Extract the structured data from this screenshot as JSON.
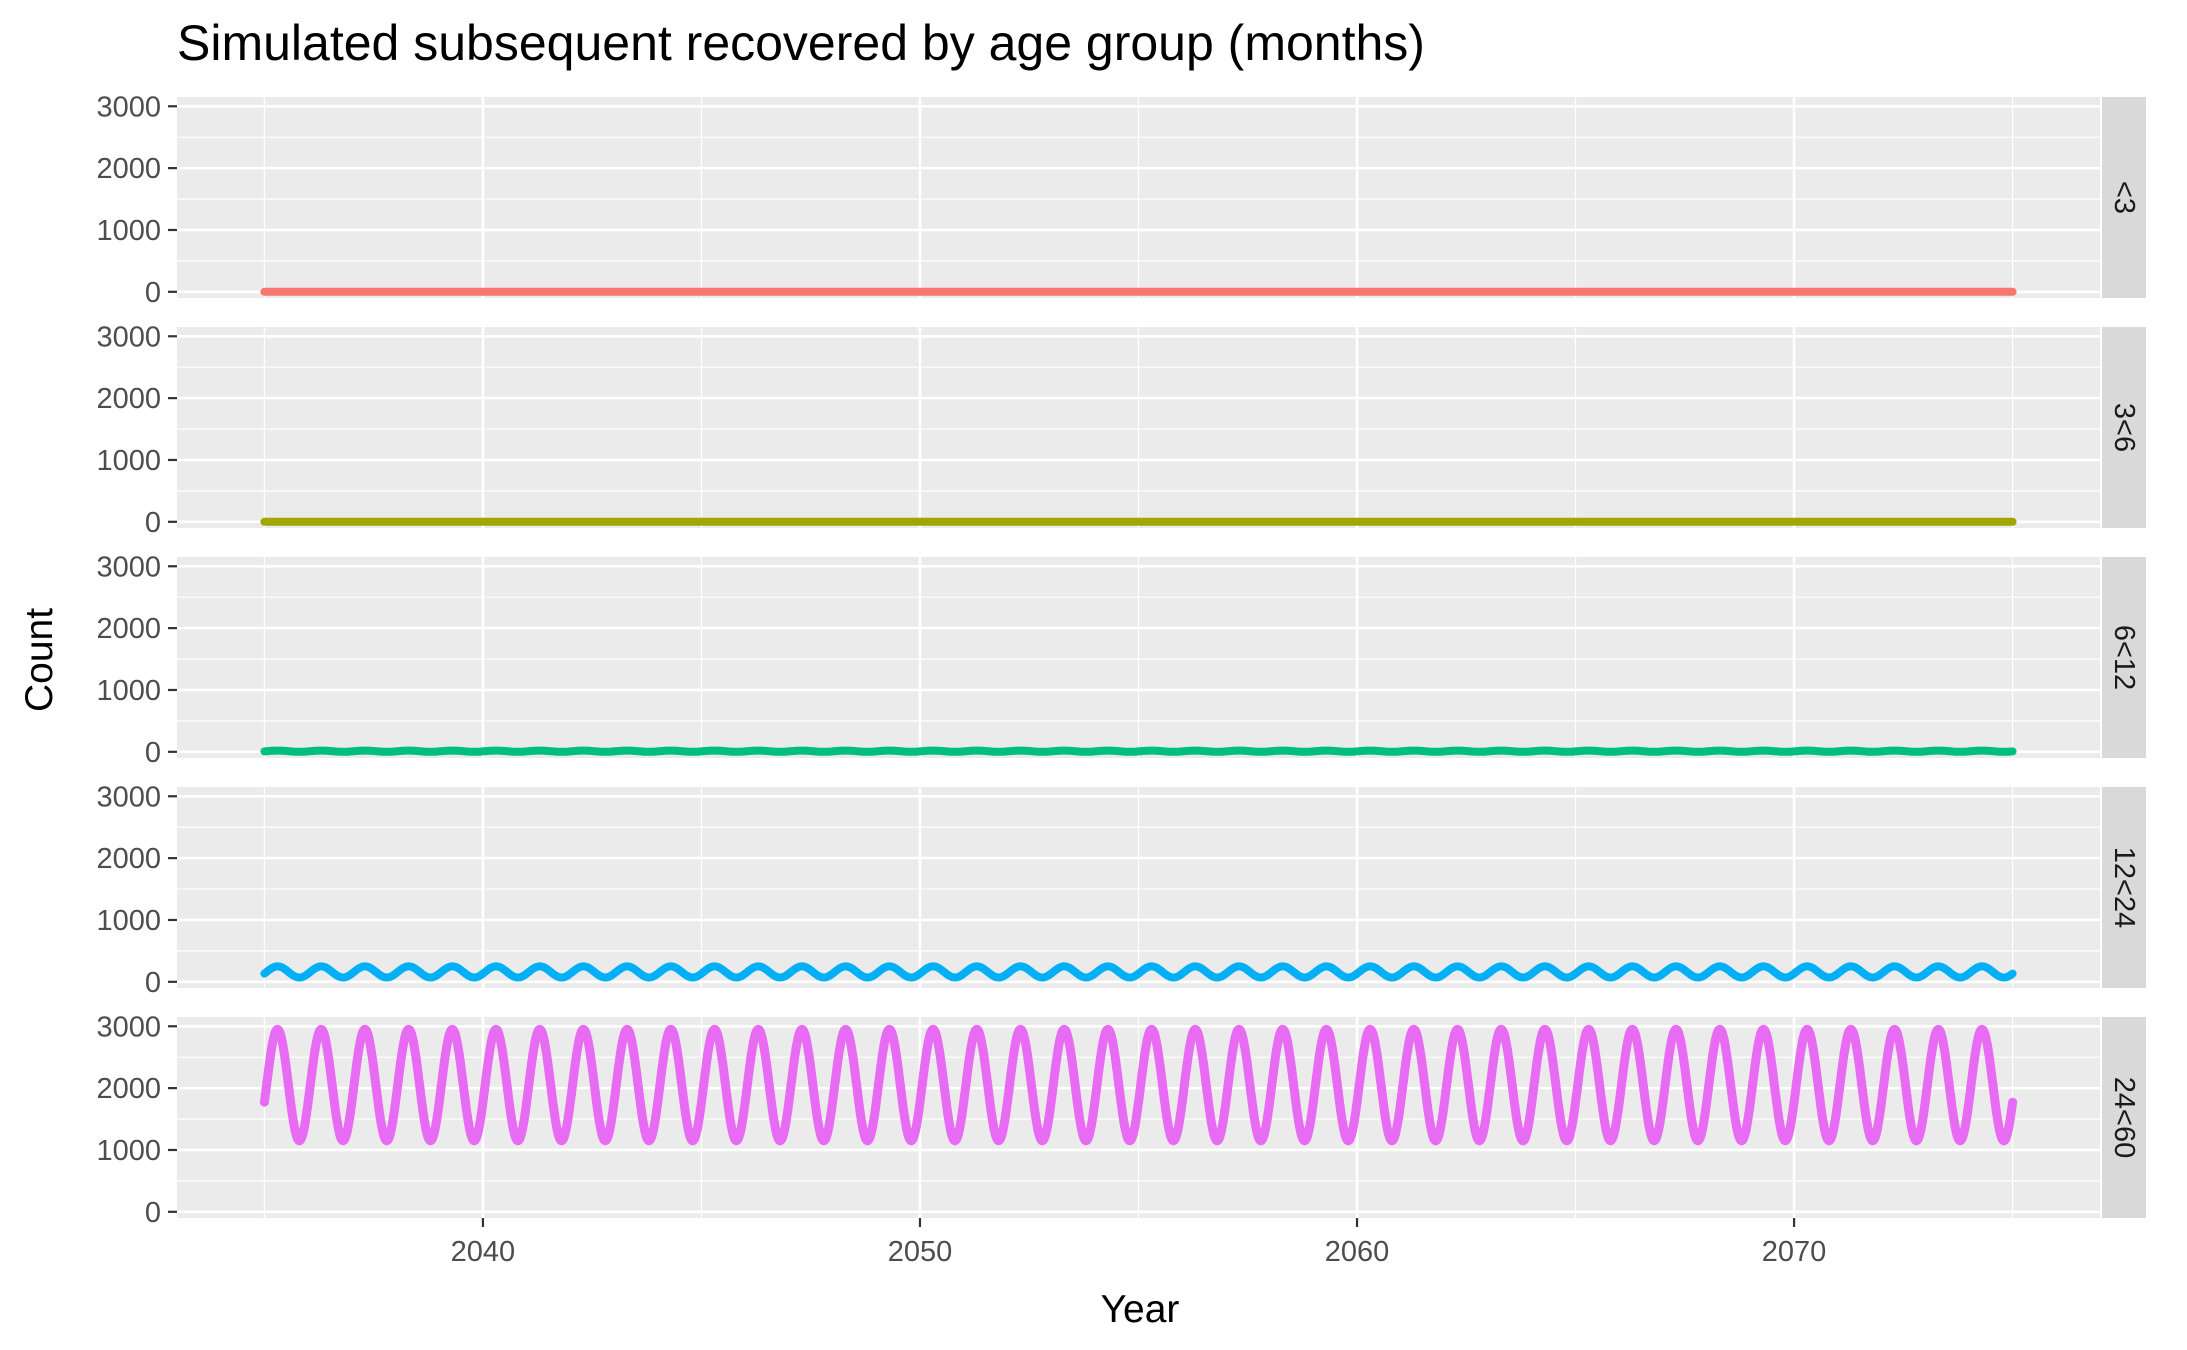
{
  "chart_data": {
    "type": "line",
    "title": "Simulated subsequent recovered by age group (months)",
    "xlabel": "Year",
    "ylabel": "Count",
    "xlim": [
      2033,
      2077
    ],
    "ylim": [
      -100,
      3150
    ],
    "x_ticks": [
      2040,
      2050,
      2060,
      2070
    ],
    "y_ticks": [
      0,
      1000,
      2000,
      3000
    ],
    "x_range": [
      2035,
      2075
    ],
    "cycles_per_year": 1,
    "grid": true,
    "facets": "rows",
    "legend": "none",
    "series": [
      {
        "name": "<3",
        "color": "#F8766D",
        "min": 0,
        "max": 0,
        "peak_phase": 0.3
      },
      {
        "name": "3<6",
        "color": "#A3A500",
        "min": 0,
        "max": 0,
        "peak_phase": 0.3
      },
      {
        "name": "6<12",
        "color": "#00BF7D",
        "min": 0,
        "max": 20,
        "peak_phase": 0.3
      },
      {
        "name": "12<24",
        "color": "#00B0F6",
        "min": 70,
        "max": 250,
        "peak_phase": 0.3
      },
      {
        "name": "24<60",
        "color": "#E76BF3",
        "min": 1150,
        "max": 2950,
        "peak_phase": 0.3
      }
    ]
  }
}
